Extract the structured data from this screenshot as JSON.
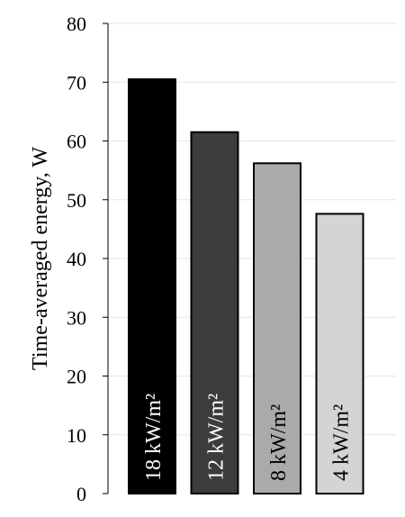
{
  "chart_data": {
    "type": "bar",
    "title": "",
    "xlabel": "",
    "ylabel": "Time-averaged  energy,  W",
    "ylim": [
      0,
      80
    ],
    "yticks": [
      "0",
      "10",
      "20",
      "30",
      "40",
      "50",
      "60",
      "70",
      "80"
    ],
    "grid": true,
    "categories": [
      "18 kW/m²",
      "12 kW/m²",
      "8 kW/m²",
      "4 kW/m²"
    ],
    "values": [
      70.5,
      61.5,
      56.2,
      47.6
    ],
    "colors": [
      "#000000",
      "#3c3c3c",
      "#aaaaaa",
      "#d4d4d4"
    ],
    "label_colors": [
      "#ffffff",
      "#ffffff",
      "#000000",
      "#000000"
    ]
  }
}
